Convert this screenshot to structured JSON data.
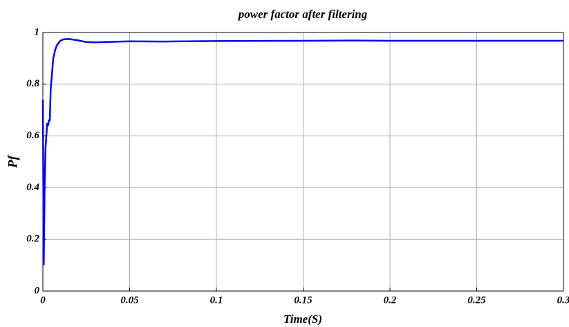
{
  "chart_data": {
    "type": "line",
    "title": "power factor after filtering",
    "xlabel": "Time(S)",
    "ylabel": "Pf",
    "x": [
      0,
      0.0005,
      0.001,
      0.0015,
      0.002,
      0.0025,
      0.003,
      0.0035,
      0.004,
      0.0045,
      0.005,
      0.006,
      0.007,
      0.008,
      0.01,
      0.012,
      0.015,
      0.018,
      0.02,
      0.025,
      0.03,
      0.04,
      0.05,
      0.07,
      0.1,
      0.15,
      0.18,
      0.2,
      0.25,
      0.3
    ],
    "color": "#0000ff",
    "values": [
      0.74,
      0.1,
      0.4,
      0.55,
      0.6,
      0.65,
      0.64,
      0.66,
      0.66,
      0.78,
      0.82,
      0.9,
      0.93,
      0.95,
      0.968,
      0.974,
      0.975,
      0.972,
      0.97,
      0.963,
      0.962,
      0.964,
      0.966,
      0.965,
      0.967,
      0.968,
      0.969,
      0.968,
      0.968,
      0.968
    ],
    "xlim": [
      0,
      0.3
    ],
    "xticks": [
      0,
      0.05,
      0.1,
      0.15,
      0.2,
      0.25,
      0.3
    ],
    "ylim": [
      0,
      1
    ],
    "yticks": [
      0,
      0.2,
      0.4,
      0.6,
      0.8,
      1
    ],
    "grid": true
  }
}
